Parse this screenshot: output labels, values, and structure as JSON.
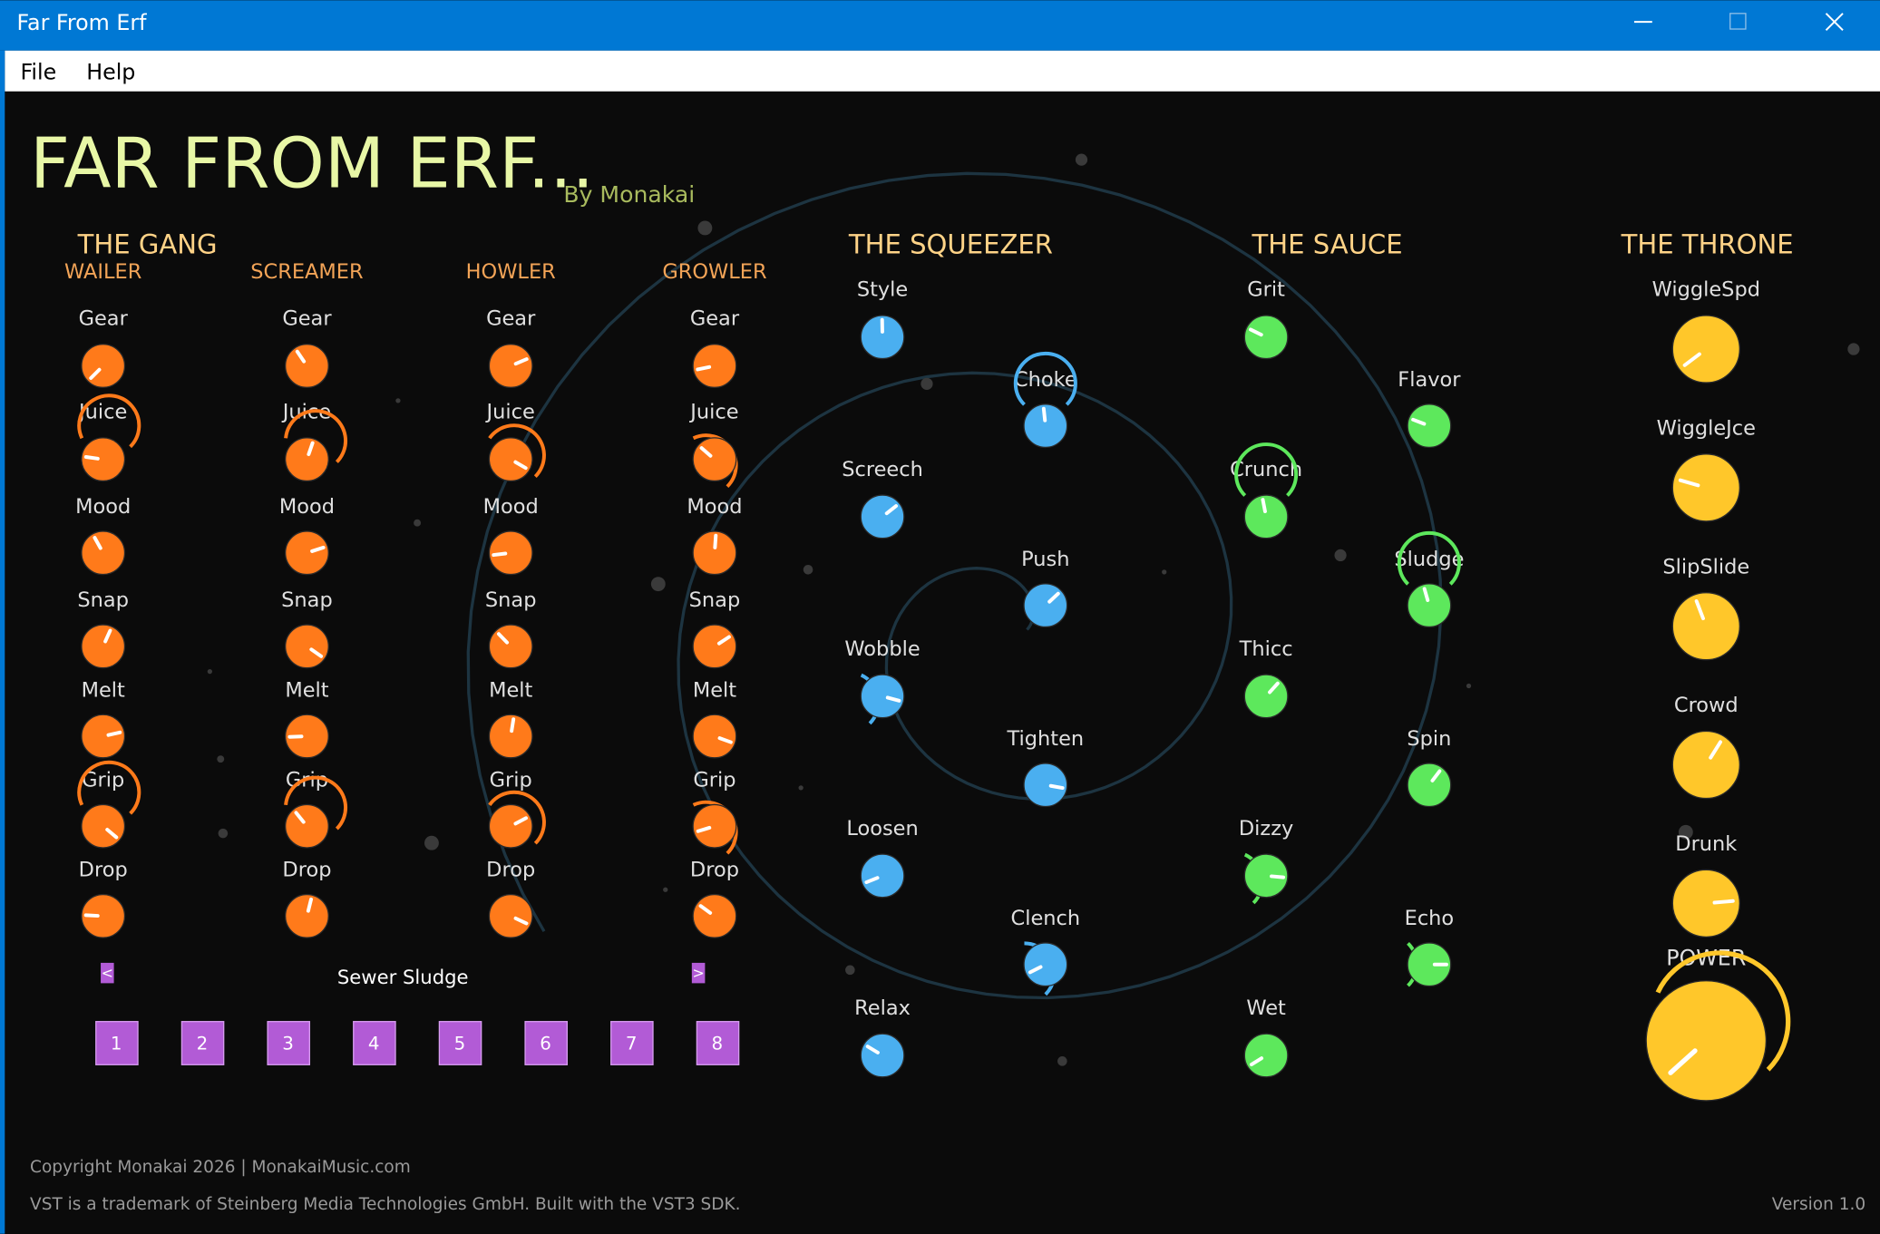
{
  "window": {
    "title": "Far From Erf"
  },
  "menu": [
    "File",
    "Help"
  ],
  "header": {
    "title": "FAR FROM ERF...",
    "byline": "By Monakai"
  },
  "gang": {
    "title": "THE GANG",
    "columns": [
      {
        "name": "WAILER",
        "knobs": [
          "Gear",
          "Juice",
          "Mood",
          "Snap",
          "Melt",
          "Grip",
          "Drop"
        ]
      },
      {
        "name": "SCREAMER",
        "knobs": [
          "Gear",
          "Juice",
          "Mood",
          "Snap",
          "Melt",
          "Grip",
          "Drop"
        ]
      },
      {
        "name": "HOWLER",
        "knobs": [
          "Gear",
          "Juice",
          "Mood",
          "Snap",
          "Melt",
          "Grip",
          "Drop"
        ]
      },
      {
        "name": "GROWLER",
        "knobs": [
          "Gear",
          "Juice",
          "Mood",
          "Snap",
          "Melt",
          "Grip",
          "Drop"
        ]
      }
    ],
    "preset_prev": "<",
    "preset_name": "Sewer Sludge",
    "preset_next": ">",
    "slots": [
      "1",
      "2",
      "3",
      "4",
      "5",
      "6",
      "7",
      "8"
    ]
  },
  "squeezer": {
    "title": "THE SQUEEZER",
    "knobs": [
      "Style",
      "Screech",
      "Wobble",
      "Loosen",
      "Relax",
      "Choke",
      "Push",
      "Tighten",
      "Clench"
    ]
  },
  "sauce": {
    "title": "THE SAUCE",
    "knobs": [
      "Grit",
      "Crunch",
      "Thicc",
      "Dizzy",
      "Wet",
      "Flavor",
      "Sludge",
      "Spin",
      "Echo"
    ]
  },
  "throne": {
    "title": "THE THRONE",
    "knobs": [
      "WiggleSpd",
      "WiggleJce",
      "SlipSlide",
      "Crowd",
      "Drunk",
      "POWER"
    ]
  },
  "footer": {
    "copyright": "Copyright Monakai 2026 | MonakaiMusic.com",
    "trademark": "VST is a trademark of Steinberg Media Technologies GmbH. Built with the VST3 SDK.",
    "version": "Version 1.0"
  }
}
